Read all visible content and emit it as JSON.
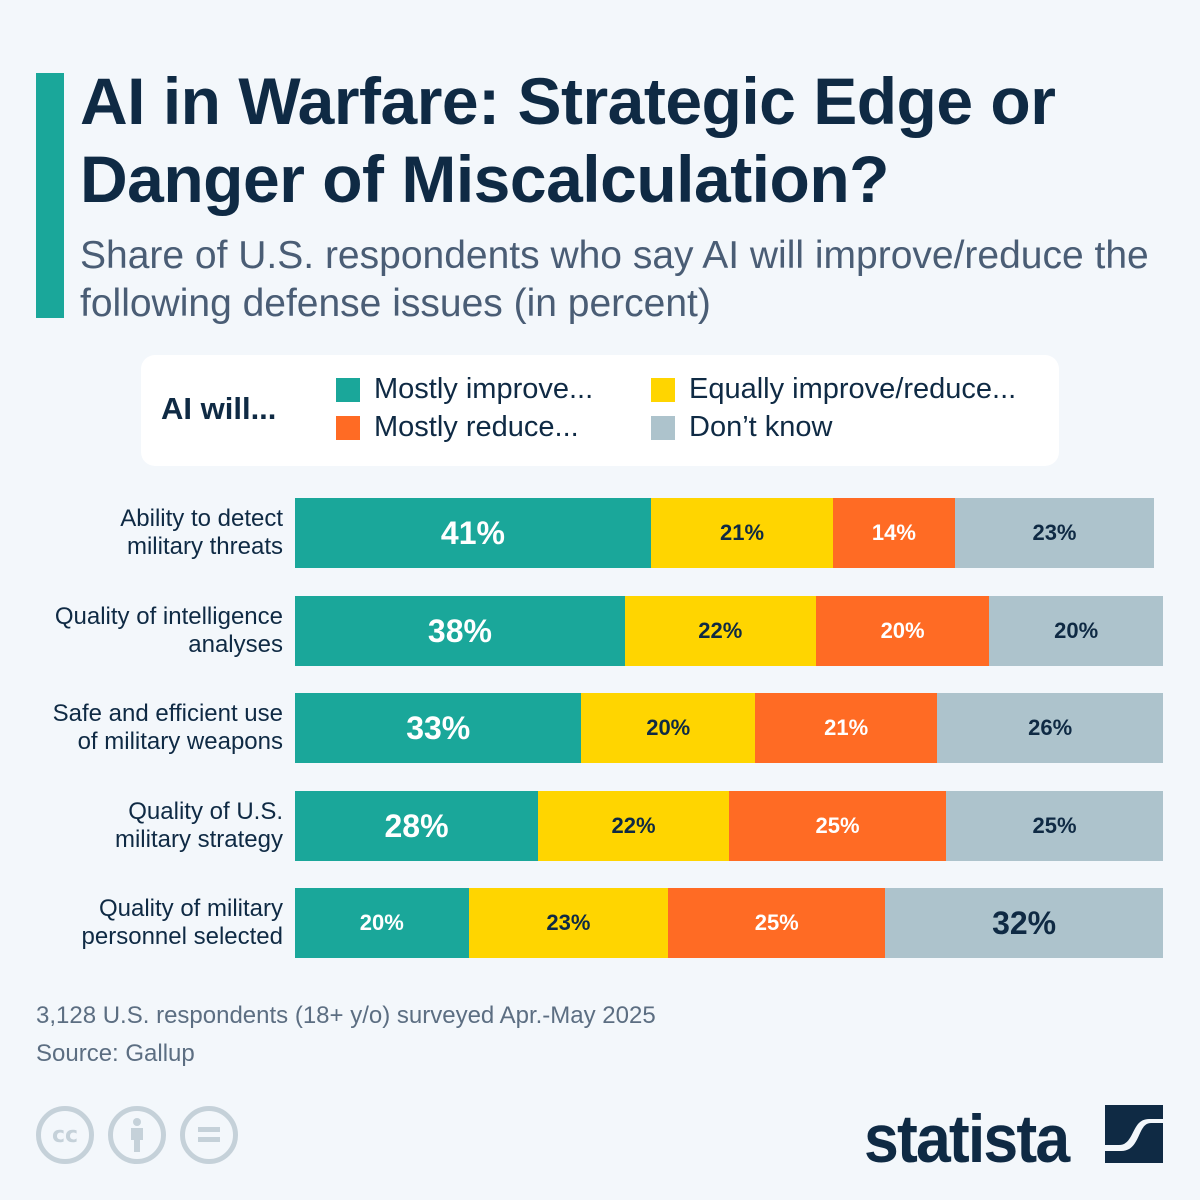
{
  "header": {
    "title": "AI in Warfare: Strategic Edge or Danger of Miscalculation?",
    "subtitle": "Share of U.S. respondents who say AI will improve/reduce the following defense issues (in percent)"
  },
  "chart_data": {
    "type": "bar",
    "orientation": "horizontal",
    "stacked": true,
    "legend_title": "AI will...",
    "legend_placement": "top",
    "categories": [
      "Ability to detect military threats",
      "Quality of intelligence analyses",
      "Safe and efficient use of military weapons",
      "Quality of U.S. military strategy",
      "Quality of military personnel selected"
    ],
    "category_lines": [
      [
        "Ability to detect",
        "military threats"
      ],
      [
        "Quality of intelligence",
        "analyses"
      ],
      [
        "Safe and efficient use",
        "of military weapons"
      ],
      [
        "Quality of U.S.",
        "military strategy"
      ],
      [
        "Quality of military",
        "personnel selected"
      ]
    ],
    "series": [
      {
        "name": "Mostly improve...",
        "color": "#1aa79a",
        "values": [
          41,
          38,
          33,
          28,
          20
        ]
      },
      {
        "name": "Equally improve/reduce...",
        "color": "#ffd500",
        "values": [
          21,
          22,
          20,
          22,
          23
        ]
      },
      {
        "name": "Mostly reduce...",
        "color": "#ff6b24",
        "values": [
          14,
          20,
          21,
          25,
          25
        ]
      },
      {
        "name": "Don’t know",
        "color": "#adc3cc",
        "values": [
          23,
          20,
          26,
          25,
          32
        ]
      }
    ],
    "value_suffix": "%",
    "xlim": [
      0,
      100
    ],
    "grid": false
  },
  "footer": {
    "note": "3,128 U.S. respondents (18+ y/o) surveyed Apr.-May 2025",
    "source": "Source: Gallup",
    "brand": "statista",
    "license_icons": [
      "cc-icon",
      "attribution-icon",
      "no-derivatives-icon"
    ]
  }
}
